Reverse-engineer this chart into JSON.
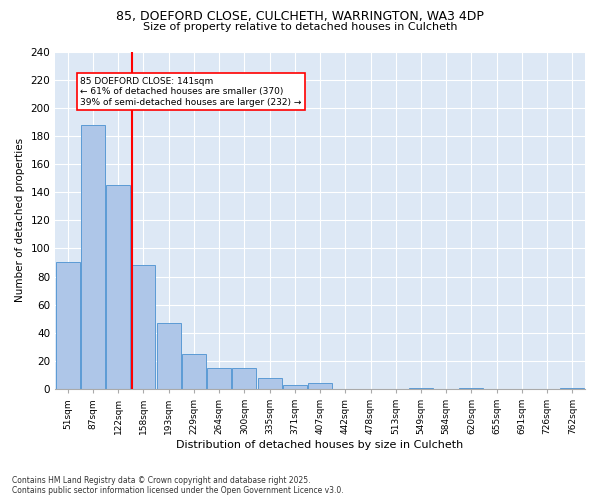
{
  "title_line1": "85, DOEFORD CLOSE, CULCHETH, WARRINGTON, WA3 4DP",
  "title_line2": "Size of property relative to detached houses in Culcheth",
  "xlabel": "Distribution of detached houses by size in Culcheth",
  "ylabel": "Number of detached properties",
  "categories": [
    "51sqm",
    "87sqm",
    "122sqm",
    "158sqm",
    "193sqm",
    "229sqm",
    "264sqm",
    "300sqm",
    "335sqm",
    "371sqm",
    "407sqm",
    "442sqm",
    "478sqm",
    "513sqm",
    "549sqm",
    "584sqm",
    "620sqm",
    "655sqm",
    "691sqm",
    "726sqm",
    "762sqm"
  ],
  "values": [
    90,
    188,
    145,
    88,
    47,
    25,
    15,
    15,
    8,
    3,
    4,
    0,
    0,
    0,
    1,
    0,
    1,
    0,
    0,
    0,
    1
  ],
  "bar_color": "#aec6e8",
  "bar_edge_color": "#5b9bd5",
  "annotation_line1": "85 DOEFORD CLOSE: 141sqm",
  "annotation_line2": "← 61% of detached houses are smaller (370)",
  "annotation_line3": "39% of semi-detached houses are larger (232) →",
  "marker_color": "red",
  "ylim": [
    0,
    240
  ],
  "yticks": [
    0,
    20,
    40,
    60,
    80,
    100,
    120,
    140,
    160,
    180,
    200,
    220,
    240
  ],
  "bg_color": "#dde8f5",
  "footer_line1": "Contains HM Land Registry data © Crown copyright and database right 2025.",
  "footer_line2": "Contains public sector information licensed under the Open Government Licence v3.0."
}
